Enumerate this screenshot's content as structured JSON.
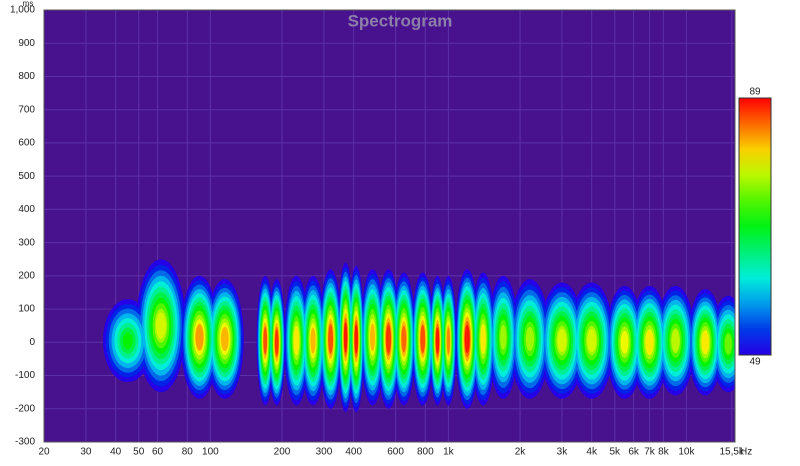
{
  "chart_data": {
    "type": "spectrogram",
    "title": "Spectrogram",
    "xlabel": "Hz",
    "ylabel": "ms",
    "xscale": "log",
    "xlim": [
      20,
      16000
    ],
    "ylim": [
      -300,
      1000
    ],
    "xticks": [
      20,
      30,
      40,
      50,
      60,
      80,
      100,
      200,
      300,
      400,
      600,
      800,
      {
        "value": 1000,
        "label": "1k"
      },
      {
        "value": 2000,
        "label": "2k"
      },
      {
        "value": 3000,
        "label": "3k"
      },
      {
        "value": 4000,
        "label": "4k"
      },
      {
        "value": 5000,
        "label": "5k"
      },
      {
        "value": 6000,
        "label": "6k"
      },
      {
        "value": 7000,
        "label": "7k"
      },
      {
        "value": 8000,
        "label": "8k"
      },
      {
        "value": 10000,
        "label": "10k"
      },
      {
        "value": 15500,
        "label": "15,5k"
      }
    ],
    "yticks": [
      -300,
      -200,
      -100,
      0,
      100,
      200,
      300,
      400,
      500,
      600,
      700,
      800,
      900,
      {
        "value": 1000,
        "label": "1,000"
      }
    ],
    "grid": true,
    "background": "#48128e",
    "clim": [
      49,
      89
    ],
    "x": [
      45,
      62,
      90,
      115,
      170,
      190,
      230,
      270,
      320,
      370,
      410,
      480,
      560,
      650,
      780,
      900,
      1000,
      1200,
      1400,
      1700,
      2200,
      3000,
      4000,
      5500,
      7000,
      9000,
      12000,
      15000
    ],
    "values": [
      70,
      78,
      83,
      82,
      86,
      87,
      80,
      82,
      86,
      88,
      88,
      82,
      87,
      85,
      86,
      88,
      84,
      88,
      80,
      76,
      76,
      78,
      78,
      79,
      80,
      77,
      80,
      74
    ],
    "upper": [
      130,
      250,
      200,
      190,
      200,
      190,
      200,
      200,
      220,
      240,
      230,
      220,
      220,
      210,
      210,
      200,
      200,
      220,
      210,
      200,
      190,
      180,
      180,
      170,
      170,
      170,
      160,
      140
    ],
    "lower": [
      -120,
      -150,
      -170,
      -170,
      -190,
      -190,
      -190,
      -190,
      -200,
      -210,
      -210,
      -190,
      -200,
      -190,
      -190,
      -190,
      -190,
      -200,
      -190,
      -170,
      -170,
      -170,
      -170,
      -170,
      -170,
      -160,
      -160,
      -150
    ]
  }
}
